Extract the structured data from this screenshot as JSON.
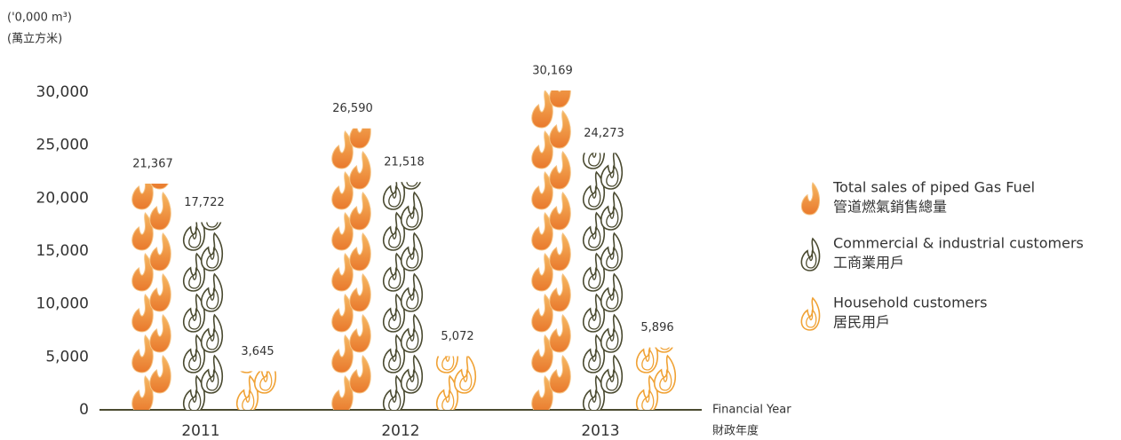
{
  "chart_data": {
    "type": "pictograph-bar",
    "y_unit": "('0,000 m³)",
    "y_unit_zh": "(萬立方米)",
    "x_label": "Financial Year",
    "x_label_zh": "財政年度",
    "categories": [
      "2011",
      "2012",
      "2013"
    ],
    "series": [
      {
        "name": "Total sales of piped Gas Fuel",
        "name_zh": "管道燃氣銷售總量",
        "color": "#eb8a35",
        "values": [
          21367,
          26590,
          30169
        ],
        "value_labels": [
          "21,367",
          "26,590",
          "30,169"
        ]
      },
      {
        "name": "Commercial & industrial customers",
        "name_zh": "工商業用戶",
        "color": "#4a4a30",
        "values": [
          17722,
          21518,
          24273
        ],
        "value_labels": [
          "17,722",
          "21,518",
          "24,273"
        ]
      },
      {
        "name": "Household customers",
        "name_zh": "居民用戶",
        "color": "#f0a235",
        "values": [
          3645,
          5072,
          5896
        ],
        "value_labels": [
          "3,645",
          "5,072",
          "5,896"
        ]
      }
    ],
    "ylim": [
      0,
      30000
    ],
    "yticks": [
      0,
      {
        "value": 5000,
        "label": "5,000"
      },
      {
        "value": 10000,
        "label": "10,000"
      },
      {
        "value": 15000,
        "label": "15,000"
      },
      {
        "value": 20000,
        "label": "20,000"
      },
      {
        "value": 25000,
        "label": "25,000"
      },
      {
        "value": 30000,
        "label": "30,000"
      }
    ]
  }
}
